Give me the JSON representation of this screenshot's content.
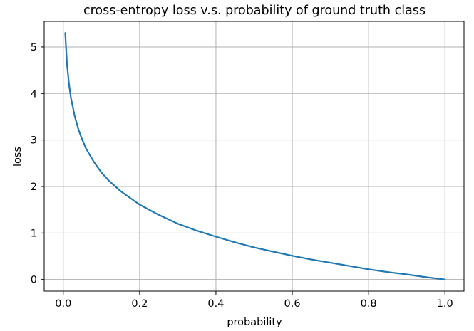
{
  "chart_data": {
    "type": "line",
    "title": "cross-entropy loss v.s. probability of ground truth class",
    "xlabel": "probability",
    "ylabel": "loss",
    "xlim": [
      -0.05,
      1.05
    ],
    "ylim": [
      -0.25,
      5.55
    ],
    "grid": true,
    "x_ticks": [
      0.0,
      0.2,
      0.4,
      0.6,
      0.8,
      1.0
    ],
    "x_tick_labels": [
      "0.0",
      "0.2",
      "0.4",
      "0.6",
      "0.8",
      "1.0"
    ],
    "y_ticks": [
      0,
      1,
      2,
      3,
      4,
      5
    ],
    "y_tick_labels": [
      "0",
      "1",
      "2",
      "3",
      "4",
      "5"
    ],
    "series": [
      {
        "color": "#1f77b4",
        "x": [
          0.005,
          0.01,
          0.015,
          0.02,
          0.03,
          0.04,
          0.05,
          0.06,
          0.08,
          0.1,
          0.12,
          0.15,
          0.2,
          0.25,
          0.3,
          0.35,
          0.4,
          0.45,
          0.5,
          0.55,
          0.6,
          0.65,
          0.7,
          0.75,
          0.8,
          0.85,
          0.9,
          0.95,
          1.0
        ],
        "y": [
          5.3,
          4.61,
          4.2,
          3.91,
          3.51,
          3.22,
          3.0,
          2.81,
          2.53,
          2.3,
          2.12,
          1.9,
          1.61,
          1.39,
          1.2,
          1.05,
          0.92,
          0.8,
          0.69,
          0.6,
          0.51,
          0.43,
          0.36,
          0.29,
          0.22,
          0.16,
          0.11,
          0.05,
          0.0
        ]
      }
    ]
  }
}
